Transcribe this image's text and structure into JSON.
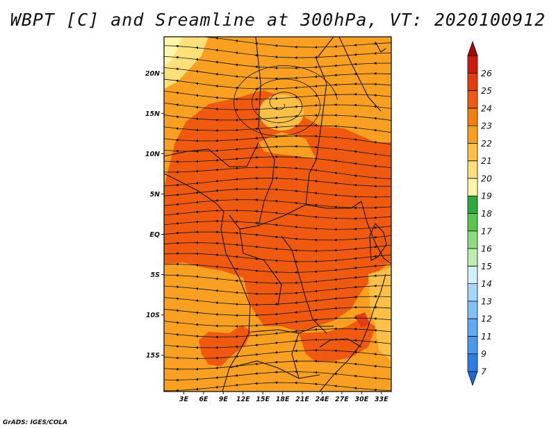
{
  "title": "WBPT [C] and Sreamline at 300hPa, VT: 2020100912",
  "footer": "GrADS: IGES/COLA",
  "map": {
    "lon_ticks": [
      "3E",
      "6E",
      "9E",
      "12E",
      "15E",
      "18E",
      "21E",
      "24E",
      "27E",
      "30E",
      "33E"
    ],
    "lat_ticks": [
      "20N",
      "15N",
      "10N",
      "5N",
      "EQ",
      "5S",
      "10S",
      "15S"
    ],
    "lon_range": [
      0,
      34.5
    ],
    "lat_range": [
      -19.5,
      24.5
    ],
    "variable": "Wet-bulb potential temperature (shaded) and streamlines at 300hPa"
  },
  "colorbar": {
    "labels": [
      "7",
      "9",
      "11",
      "12",
      "13",
      "14",
      "15",
      "16",
      "17",
      "18",
      "19",
      "20",
      "21",
      "22",
      "23",
      "24",
      "25",
      "26"
    ],
    "colors": [
      "#1e64dc",
      "#2f7ee8",
      "#4a98f0",
      "#62aaf5",
      "#82bff8",
      "#a6d4fb",
      "#d2effc",
      "#bdeeb0",
      "#8ddb7f",
      "#5bc64f",
      "#2fa83d",
      "#fff7a8",
      "#fde07a",
      "#fcc048",
      "#f99f22",
      "#f57e10",
      "#ef5a10",
      "#e43d10",
      "#cc1a0e",
      "#a80a08"
    ]
  }
}
